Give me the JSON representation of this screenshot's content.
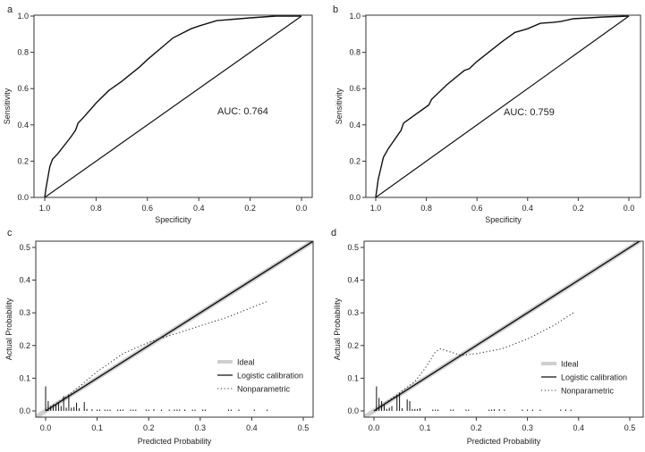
{
  "chart_data": [
    {
      "panel_label": "a",
      "type": "line",
      "xlabel": "Specificity",
      "ylabel": "Sensitivity",
      "xlim": [
        1.0,
        0.0
      ],
      "ylim": [
        0.0,
        1.0
      ],
      "x_reversed": true,
      "xticks": [
        "1.0",
        "0.8",
        "0.6",
        "0.4",
        "0.2",
        "0.0"
      ],
      "yticks": [
        "0.0",
        "0.2",
        "0.4",
        "0.6",
        "0.8",
        "1.0"
      ],
      "annotation": "AUC: 0.764",
      "diagonal_reference": true,
      "series": [
        {
          "x": [
            1.0,
            0.995,
            0.98,
            0.97,
            0.95,
            0.9,
            0.88,
            0.87,
            0.85,
            0.8,
            0.75,
            0.7,
            0.63,
            0.6,
            0.5,
            0.43,
            0.4,
            0.33,
            0.2,
            0.1,
            0.0
          ],
          "y": [
            0.0,
            0.05,
            0.17,
            0.21,
            0.24,
            0.33,
            0.37,
            0.41,
            0.44,
            0.52,
            0.59,
            0.64,
            0.72,
            0.76,
            0.88,
            0.93,
            0.945,
            0.975,
            0.99,
            1.0,
            1.0
          ]
        }
      ]
    },
    {
      "panel_label": "b",
      "type": "line",
      "xlabel": "Specificity",
      "ylabel": "Sensitivity",
      "xlim": [
        1.0,
        0.0
      ],
      "ylim": [
        0.0,
        1.0
      ],
      "x_reversed": true,
      "xticks": [
        "1.0",
        "0.8",
        "0.6",
        "0.4",
        "0.2",
        "0.0"
      ],
      "yticks": [
        "0.0",
        "0.2",
        "0.4",
        "0.6",
        "0.8",
        "1.0"
      ],
      "annotation": "AUC: 0.759",
      "diagonal_reference": true,
      "series": [
        {
          "x": [
            1.0,
            0.99,
            0.98,
            0.97,
            0.95,
            0.9,
            0.89,
            0.87,
            0.84,
            0.81,
            0.79,
            0.78,
            0.72,
            0.65,
            0.63,
            0.6,
            0.5,
            0.45,
            0.4,
            0.35,
            0.3,
            0.27,
            0.22,
            0.1,
            0.0
          ],
          "y": [
            0.0,
            0.1,
            0.16,
            0.22,
            0.27,
            0.37,
            0.41,
            0.43,
            0.46,
            0.49,
            0.51,
            0.54,
            0.62,
            0.7,
            0.71,
            0.75,
            0.86,
            0.91,
            0.93,
            0.96,
            0.965,
            0.97,
            0.985,
            0.995,
            1.0
          ]
        }
      ]
    },
    {
      "panel_label": "c",
      "type": "line",
      "xlabel": "Predicted Probability",
      "ylabel": "Actual Probability",
      "xlim": [
        -0.02,
        0.52
      ],
      "ylim": [
        -0.02,
        0.52
      ],
      "xticks": [
        "0.0",
        "0.1",
        "0.2",
        "0.3",
        "0.4",
        "0.5"
      ],
      "yticks": [
        "0.0",
        "0.1",
        "0.2",
        "0.3",
        "0.4",
        "0.5"
      ],
      "legend": {
        "position": "bottom-right",
        "entries": [
          "Ideal",
          "Logistic calibration",
          "Nonparametric"
        ]
      },
      "series": [
        {
          "name": "Ideal",
          "style": "thick-gray",
          "x": [
            -0.02,
            0.52
          ],
          "y": [
            -0.02,
            0.52
          ]
        },
        {
          "name": "Logistic calibration",
          "style": "solid",
          "x": [
            0.0,
            0.52
          ],
          "y": [
            0.0,
            0.52
          ]
        },
        {
          "name": "Nonparametric",
          "style": "dotted",
          "x": [
            0.0,
            0.05,
            0.1,
            0.15,
            0.2,
            0.25,
            0.3,
            0.35,
            0.43
          ],
          "y": [
            0.0,
            0.055,
            0.12,
            0.175,
            0.21,
            0.235,
            0.26,
            0.285,
            0.335
          ]
        }
      ],
      "histogram_spikes": {
        "x": [
          0.0,
          0.005,
          0.01,
          0.015,
          0.02,
          0.025,
          0.03,
          0.035,
          0.04,
          0.045,
          0.05,
          0.055,
          0.06,
          0.065,
          0.075,
          0.08,
          0.09,
          0.1,
          0.105,
          0.115,
          0.12,
          0.125,
          0.14,
          0.145,
          0.15,
          0.165,
          0.17,
          0.175,
          0.195,
          0.2,
          0.21,
          0.225,
          0.24,
          0.25,
          0.255,
          0.26,
          0.27,
          0.285,
          0.29,
          0.305,
          0.31,
          0.355,
          0.36,
          0.375,
          0.405,
          0.43
        ],
        "y": [
          0.075,
          0.03,
          0.015,
          0.02,
          0.018,
          0.025,
          0.015,
          0.045,
          0.01,
          0.05,
          0.01,
          0.012,
          0.025,
          0.008,
          0.027,
          0.006,
          0.005,
          0.004,
          0.004,
          0.004,
          0.004,
          0.004,
          0.004,
          0.004,
          0.004,
          0.004,
          0.004,
          0.004,
          0.004,
          0.004,
          0.005,
          0.004,
          0.004,
          0.004,
          0.004,
          0.004,
          0.004,
          0.004,
          0.004,
          0.004,
          0.004,
          0.004,
          0.004,
          0.004,
          0.004,
          0.004
        ]
      }
    },
    {
      "panel_label": "d",
      "type": "line",
      "xlabel": "Predicted Probability",
      "ylabel": "Actual Probability",
      "xlim": [
        -0.02,
        0.52
      ],
      "ylim": [
        -0.02,
        0.52
      ],
      "xticks": [
        "0.0",
        "0.1",
        "0.2",
        "0.3",
        "0.4",
        "0.5"
      ],
      "yticks": [
        "0.0",
        "0.1",
        "0.2",
        "0.3",
        "0.4",
        "0.5"
      ],
      "legend": {
        "position": "bottom-right",
        "entries": [
          "Ideal",
          "Logistic calibration",
          "Nonparametric"
        ]
      },
      "series": [
        {
          "name": "Ideal",
          "style": "thick-gray",
          "x": [
            -0.02,
            0.52
          ],
          "y": [
            -0.02,
            0.52
          ]
        },
        {
          "name": "Logistic calibration",
          "style": "solid",
          "x": [
            0.0,
            0.52
          ],
          "y": [
            0.0,
            0.52
          ]
        },
        {
          "name": "Nonparametric",
          "style": "dotted",
          "x": [
            0.0,
            0.05,
            0.08,
            0.1,
            0.12,
            0.13,
            0.15,
            0.17,
            0.2,
            0.25,
            0.3,
            0.35,
            0.39
          ],
          "y": [
            0.0,
            0.055,
            0.09,
            0.13,
            0.18,
            0.19,
            0.18,
            0.17,
            0.175,
            0.19,
            0.22,
            0.26,
            0.3
          ]
        }
      ],
      "histogram_spikes": {
        "x": [
          0.005,
          0.01,
          0.015,
          0.02,
          0.025,
          0.03,
          0.035,
          0.045,
          0.05,
          0.055,
          0.065,
          0.07,
          0.075,
          0.08,
          0.085,
          0.09,
          0.115,
          0.12,
          0.125,
          0.15,
          0.155,
          0.18,
          0.185,
          0.225,
          0.23,
          0.235,
          0.245,
          0.255,
          0.29,
          0.3,
          0.31,
          0.325,
          0.365,
          0.375,
          0.385
        ],
        "y": [
          0.075,
          0.04,
          0.03,
          0.02,
          0.006,
          0.01,
          0.015,
          0.045,
          0.055,
          0.008,
          0.035,
          0.03,
          0.006,
          0.006,
          0.006,
          0.008,
          0.004,
          0.004,
          0.004,
          0.004,
          0.004,
          0.004,
          0.004,
          0.004,
          0.004,
          0.005,
          0.005,
          0.004,
          0.004,
          0.004,
          0.004,
          0.004,
          0.004,
          0.004,
          0.004
        ]
      }
    }
  ]
}
